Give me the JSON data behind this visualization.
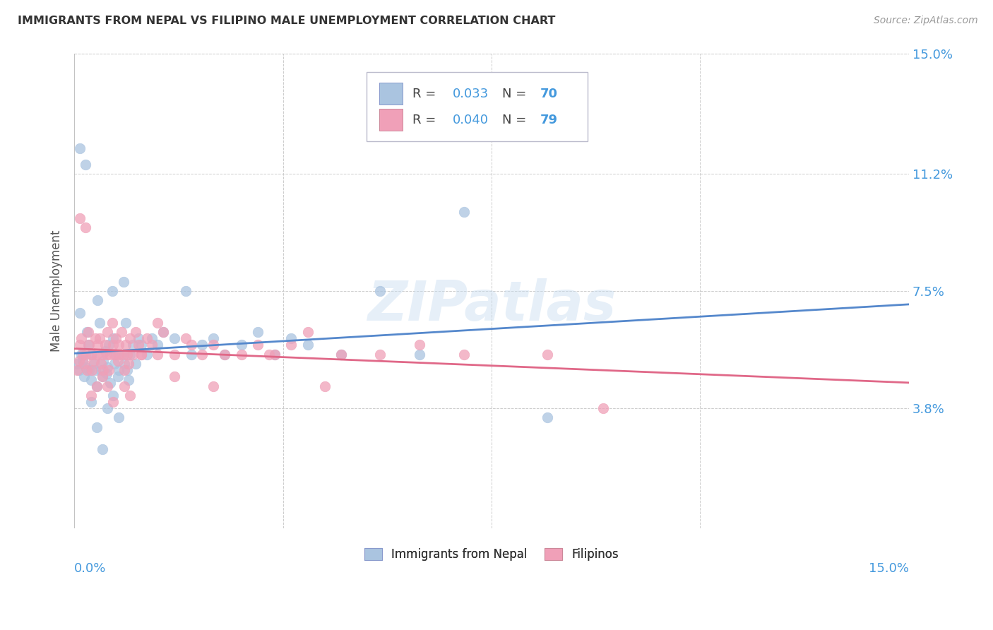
{
  "title": "IMMIGRANTS FROM NEPAL VS FILIPINO MALE UNEMPLOYMENT CORRELATION CHART",
  "source": "Source: ZipAtlas.com",
  "ylabel": "Male Unemployment",
  "ytick_labels": [
    "3.8%",
    "7.5%",
    "11.2%",
    "15.0%"
  ],
  "ytick_values": [
    3.8,
    7.5,
    11.2,
    15.0
  ],
  "xlim": [
    0.0,
    15.0
  ],
  "ylim": [
    0.0,
    15.0
  ],
  "legend_label_1": "Immigrants from Nepal",
  "legend_label_2": "Filipinos",
  "color_nepal": "#aac4e0",
  "color_filipino": "#f0a0b8",
  "color_nepal_line": "#5588cc",
  "color_filipino_line": "#e06888",
  "color_blue_text": "#4499dd",
  "color_dark": "#444444",
  "nepal_x": [
    0.05,
    0.08,
    0.1,
    0.12,
    0.15,
    0.17,
    0.2,
    0.22,
    0.25,
    0.27,
    0.3,
    0.32,
    0.35,
    0.38,
    0.4,
    0.42,
    0.45,
    0.48,
    0.5,
    0.52,
    0.55,
    0.58,
    0.6,
    0.62,
    0.65,
    0.68,
    0.7,
    0.72,
    0.75,
    0.78,
    0.8,
    0.85,
    0.88,
    0.9,
    0.92,
    0.95,
    0.98,
    1.0,
    1.05,
    1.1,
    1.15,
    1.2,
    1.3,
    1.4,
    1.5,
    1.6,
    1.8,
    2.0,
    2.1,
    2.3,
    2.5,
    2.7,
    3.0,
    3.3,
    3.6,
    3.9,
    4.2,
    4.8,
    5.5,
    6.2,
    7.0,
    8.5,
    0.1,
    0.2,
    0.3,
    0.4,
    0.5,
    0.6,
    0.7,
    0.8
  ],
  "nepal_y": [
    5.2,
    5.0,
    6.8,
    5.5,
    5.3,
    4.8,
    5.1,
    6.2,
    5.8,
    5.0,
    4.7,
    5.5,
    5.2,
    5.0,
    4.5,
    7.2,
    6.5,
    5.0,
    4.8,
    5.3,
    5.6,
    4.9,
    5.1,
    5.8,
    4.6,
    7.5,
    6.0,
    5.2,
    5.5,
    4.8,
    5.0,
    5.5,
    7.8,
    5.2,
    6.5,
    5.0,
    4.7,
    5.5,
    5.8,
    5.2,
    6.0,
    5.8,
    5.5,
    6.0,
    5.8,
    6.2,
    6.0,
    7.5,
    5.5,
    5.8,
    6.0,
    5.5,
    5.8,
    6.2,
    5.5,
    6.0,
    5.8,
    5.5,
    7.5,
    5.5,
    10.0,
    3.5,
    12.0,
    11.5,
    4.0,
    3.2,
    2.5,
    3.8,
    4.2,
    3.5
  ],
  "filipino_x": [
    0.05,
    0.08,
    0.1,
    0.12,
    0.15,
    0.17,
    0.2,
    0.22,
    0.25,
    0.27,
    0.3,
    0.32,
    0.35,
    0.38,
    0.4,
    0.42,
    0.45,
    0.48,
    0.5,
    0.52,
    0.55,
    0.58,
    0.6,
    0.62,
    0.65,
    0.68,
    0.7,
    0.72,
    0.75,
    0.78,
    0.8,
    0.85,
    0.88,
    0.9,
    0.92,
    0.95,
    0.98,
    1.0,
    1.05,
    1.1,
    1.15,
    1.2,
    1.3,
    1.4,
    1.5,
    1.6,
    1.8,
    2.0,
    2.1,
    2.3,
    2.5,
    2.7,
    3.0,
    3.3,
    3.6,
    3.9,
    4.2,
    4.8,
    5.5,
    6.2,
    7.0,
    8.5,
    0.1,
    0.2,
    0.3,
    0.4,
    0.5,
    0.6,
    0.7,
    0.8,
    0.9,
    1.0,
    1.2,
    1.5,
    1.8,
    2.5,
    3.5,
    4.5,
    9.5
  ],
  "filipino_y": [
    5.0,
    5.3,
    5.8,
    6.0,
    5.5,
    5.2,
    5.5,
    5.0,
    6.2,
    5.8,
    5.5,
    5.0,
    5.3,
    6.0,
    5.5,
    5.8,
    6.0,
    5.2,
    5.5,
    5.0,
    5.8,
    5.5,
    6.2,
    5.0,
    5.5,
    6.5,
    5.8,
    5.5,
    6.0,
    5.3,
    5.8,
    6.2,
    5.5,
    5.0,
    5.8,
    5.5,
    5.2,
    6.0,
    5.5,
    6.2,
    5.8,
    5.5,
    6.0,
    5.8,
    6.5,
    6.2,
    5.5,
    6.0,
    5.8,
    5.5,
    5.8,
    5.5,
    5.5,
    5.8,
    5.5,
    5.8,
    6.2,
    5.5,
    5.5,
    5.8,
    5.5,
    5.5,
    9.8,
    9.5,
    4.2,
    4.5,
    4.8,
    4.5,
    4.0,
    5.5,
    4.5,
    4.2,
    5.5,
    5.5,
    4.8,
    4.5,
    5.5,
    4.5,
    3.8
  ]
}
